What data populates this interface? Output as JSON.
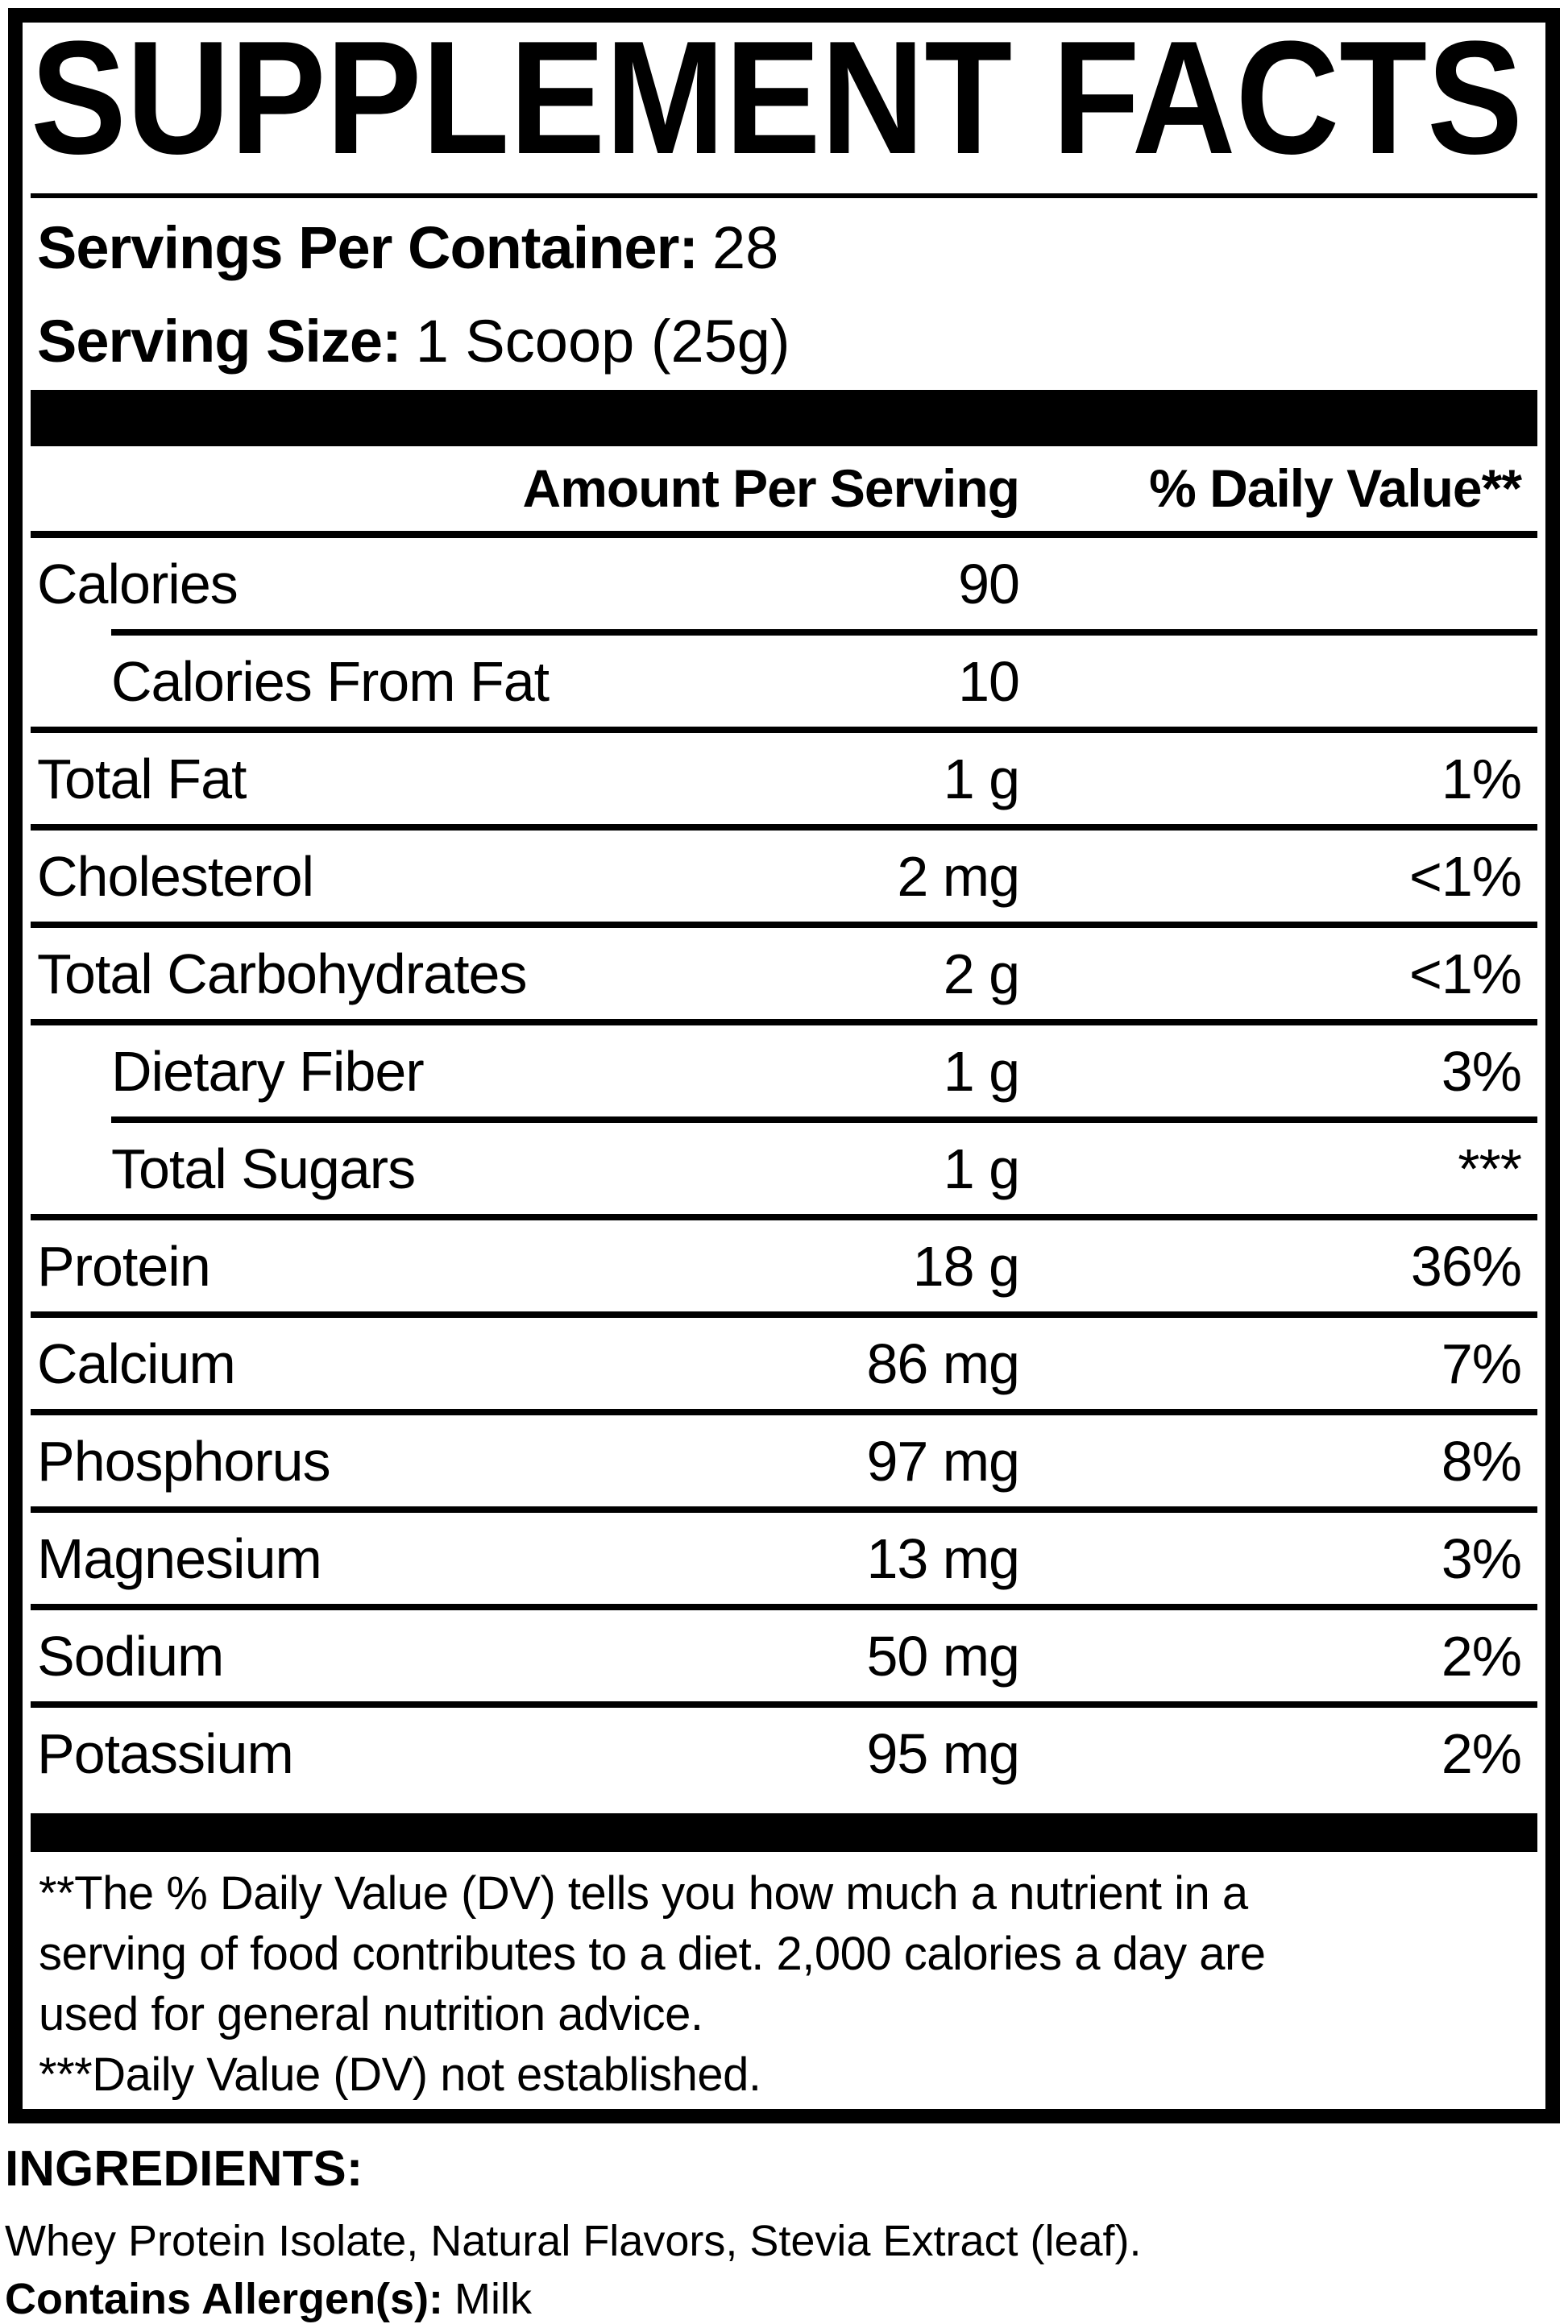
{
  "colors": {
    "ink": "#000000",
    "paper": "#ffffff"
  },
  "title": "SUPPLEMENT FACTS",
  "serving": {
    "servings_per_container_label": "Servings Per Container:",
    "servings_per_container_value": "28",
    "serving_size_label": "Serving Size:",
    "serving_size_value": "1 Scoop (25g)"
  },
  "table": {
    "amount_header": "Amount Per Serving",
    "dv_header": "% Daily Value**",
    "rows": [
      {
        "label": "Calories",
        "amount": "90",
        "dv": "",
        "sub": false,
        "divider_above": "none"
      },
      {
        "label": "Calories From Fat",
        "amount": "10",
        "dv": "",
        "sub": true,
        "divider_above": "indent"
      },
      {
        "label": "Total Fat",
        "amount": "1 g",
        "dv": "1%",
        "sub": false,
        "divider_above": "full"
      },
      {
        "label": "Cholesterol",
        "amount": "2 mg",
        "dv": "<1%",
        "sub": false,
        "divider_above": "full"
      },
      {
        "label": "Total Carbohydrates",
        "amount": "2 g",
        "dv": "<1%",
        "sub": false,
        "divider_above": "full"
      },
      {
        "label": "Dietary Fiber",
        "amount": "1 g",
        "dv": "3%",
        "sub": true,
        "divider_above": "full"
      },
      {
        "label": "Total Sugars",
        "amount": "1 g",
        "dv": "***",
        "sub": true,
        "divider_above": "indent"
      },
      {
        "label": "Protein",
        "amount": "18 g",
        "dv": "36%",
        "sub": false,
        "divider_above": "full"
      },
      {
        "label": "Calcium",
        "amount": "86 mg",
        "dv": "7%",
        "sub": false,
        "divider_above": "full"
      },
      {
        "label": "Phosphorus",
        "amount": "97 mg",
        "dv": "8%",
        "sub": false,
        "divider_above": "full"
      },
      {
        "label": "Magnesium",
        "amount": "13 mg",
        "dv": "3%",
        "sub": false,
        "divider_above": "full"
      },
      {
        "label": "Sodium",
        "amount": "50 mg",
        "dv": "2%",
        "sub": false,
        "divider_above": "full"
      },
      {
        "label": "Potassium",
        "amount": "95 mg",
        "dv": "2%",
        "sub": false,
        "divider_above": "full"
      }
    ]
  },
  "footnote": {
    "lines": [
      "**The % Daily Value (DV) tells you how much a nutrient in a",
      "serving of food contributes to a diet. 2,000 calories a day are",
      "used for general nutrition advice.",
      "***Daily Value (DV) not established."
    ]
  },
  "ingredients": {
    "heading": "INGREDIENTS:",
    "list": "Whey Protein Isolate, Natural Flavors, Stevia Extract (leaf).",
    "allergen_label": "Contains Allergen(s):",
    "allergen_value": "Milk"
  }
}
